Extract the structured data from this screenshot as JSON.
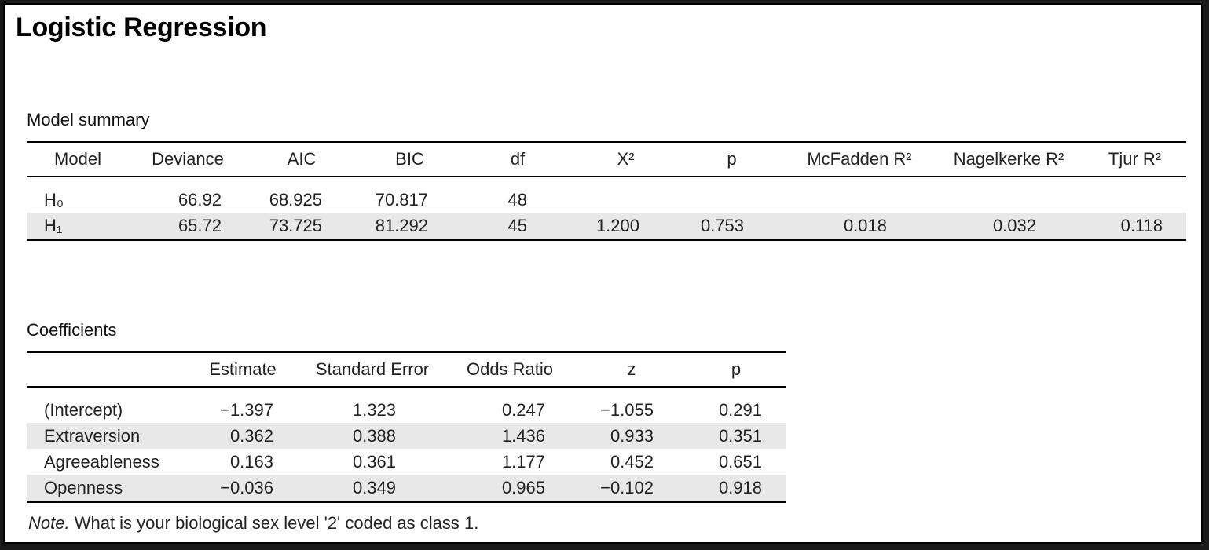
{
  "title": "Logistic Regression",
  "model_summary": {
    "section_title": "Model summary",
    "columns": [
      "Model",
      "Deviance",
      "AIC",
      "BIC",
      "df",
      "X²",
      "p",
      "McFadden R²",
      "Nagelkerke R²",
      "Tjur R²"
    ],
    "rows": [
      {
        "model": "H₀",
        "deviance": "66.92",
        "aic": "68.925",
        "bic": "70.817",
        "df": "48",
        "chi2": "",
        "p": "",
        "mcfadden": "",
        "nagelkerke": "",
        "tjur": ""
      },
      {
        "model": "H₁",
        "deviance": "65.72",
        "aic": "73.725",
        "bic": "81.292",
        "df": "45",
        "chi2": "1.200",
        "p": "0.753",
        "mcfadden": "0.018",
        "nagelkerke": "0.032",
        "tjur": "0.118"
      }
    ]
  },
  "coefficients": {
    "section_title": "Coefficients",
    "columns": [
      "",
      "Estimate",
      "Standard Error",
      "Odds Ratio",
      "z",
      "p"
    ],
    "rows": [
      {
        "term": "(Intercept)",
        "estimate": "−1.397",
        "se": "1.323",
        "or": "0.247",
        "z": "−1.055",
        "p": "0.291"
      },
      {
        "term": "Extraversion",
        "estimate": "0.362",
        "se": "0.388",
        "or": "1.436",
        "z": "0.933",
        "p": "0.351"
      },
      {
        "term": "Agreeableness",
        "estimate": "0.163",
        "se": "0.361",
        "or": "1.177",
        "z": "0.452",
        "p": "0.651"
      },
      {
        "term": "Openness",
        "estimate": "−0.036",
        "se": "0.349",
        "or": "0.965",
        "z": "−0.102",
        "p": "0.918"
      }
    ]
  },
  "note": {
    "prefix": "Note.",
    "text": " What is your biological sex level '2' coded as class 1."
  }
}
